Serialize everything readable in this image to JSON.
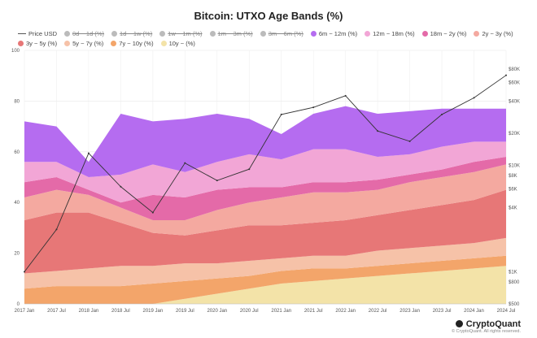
{
  "chart_data": {
    "type": "area",
    "title": "Bitcoin: UTXO Age Bands (%)",
    "stacked": true,
    "x": [
      "2017 Jan",
      "2017 Jul",
      "2018 Jan",
      "2018 Jul",
      "2019 Jan",
      "2019 Jul",
      "2020 Jan",
      "2020 Jul",
      "2021 Jan",
      "2021 Jul",
      "2022 Jan",
      "2022 Jul",
      "2023 Jan",
      "2023 Jul",
      "2024 Jan",
      "2024 Jul"
    ],
    "x_ticks": [
      "2017 Jan",
      "2017 Jul",
      "2018 Jan",
      "2018 Jul",
      "2019 Jan",
      "2019 Jul",
      "2020 Jan",
      "2020 Jul",
      "2021 Jan",
      "2021 Jul",
      "2022 Jan",
      "2022 Jul",
      "2023 Jan",
      "2023 Jul",
      "2024 Jan",
      "2024 Jul"
    ],
    "ylim": [
      0,
      100
    ],
    "y_ticks": [
      0,
      20,
      40,
      60,
      80,
      100
    ],
    "y2_scale": "log",
    "y2lim": [
      500,
      120000
    ],
    "y2_ticks": [
      {
        "label": "$500",
        "value": 500
      },
      {
        "label": "$800",
        "value": 800
      },
      {
        "label": "$1K",
        "value": 1000
      },
      {
        "label": "$4K",
        "value": 4000
      },
      {
        "label": "$6K",
        "value": 6000
      },
      {
        "label": "$8K",
        "value": 8000
      },
      {
        "label": "$10K",
        "value": 10000
      },
      {
        "label": "$20K",
        "value": 20000
      },
      {
        "label": "$40K",
        "value": 40000
      },
      {
        "label": "$60K",
        "value": 60000
      },
      {
        "label": "$80K",
        "value": 80000
      }
    ],
    "grid": true,
    "legend_position": "top-left",
    "legend": [
      {
        "label": "Price USD",
        "color": "#555555",
        "kind": "line",
        "hidden": false
      },
      {
        "label": "0d ~ 1d (%)",
        "color": "#bbbbbb",
        "kind": "dot",
        "hidden": true
      },
      {
        "label": "1d ~ 1w (%)",
        "color": "#bbbbbb",
        "kind": "dot",
        "hidden": true
      },
      {
        "label": "1w ~ 1m (%)",
        "color": "#bbbbbb",
        "kind": "dot",
        "hidden": true
      },
      {
        "label": "1m ~ 3m (%)",
        "color": "#bbbbbb",
        "kind": "dot",
        "hidden": true
      },
      {
        "label": "3m ~ 6m (%)",
        "color": "#bbbbbb",
        "kind": "dot",
        "hidden": true
      },
      {
        "label": "6m ~ 12m (%)",
        "color": "#b56cf0",
        "kind": "dot",
        "hidden": false
      },
      {
        "label": "12m ~ 18m (%)",
        "color": "#f2a6d6",
        "kind": "dot",
        "hidden": false
      },
      {
        "label": "18m ~ 2y (%)",
        "color": "#e46aa8",
        "kind": "dot",
        "hidden": false
      },
      {
        "label": "2y ~ 3y (%)",
        "color": "#f4a9a0",
        "kind": "dot",
        "hidden": false
      },
      {
        "label": "3y ~ 5y (%)",
        "color": "#e77777",
        "kind": "dot",
        "hidden": false
      },
      {
        "label": "5y ~ 7y (%)",
        "color": "#f6c2a8",
        "kind": "dot",
        "hidden": false
      },
      {
        "label": "7y ~ 10y (%)",
        "color": "#f3a56a",
        "kind": "dot",
        "hidden": false
      },
      {
        "label": "10y ~ (%)",
        "color": "#f3e3a8",
        "kind": "dot",
        "hidden": false
      }
    ],
    "series": [
      {
        "name": "10y ~ (%)",
        "color": "#f3e3a8",
        "values": [
          0,
          0,
          0,
          0,
          0,
          2,
          4,
          6,
          8,
          9,
          10,
          11,
          12,
          13,
          14,
          15
        ]
      },
      {
        "name": "7y ~ 10y (%)",
        "color": "#f3a56a",
        "values": [
          6,
          7,
          7,
          7,
          8,
          7,
          6,
          5,
          5,
          5,
          4,
          4,
          4,
          4,
          4,
          4
        ]
      },
      {
        "name": "5y ~ 7y (%)",
        "color": "#f6c2a8",
        "values": [
          6,
          6,
          7,
          8,
          7,
          7,
          6,
          6,
          5,
          5,
          5,
          6,
          6,
          6,
          6,
          7
        ]
      },
      {
        "name": "3y ~ 5y (%)",
        "color": "#e77777",
        "values": [
          21,
          23,
          22,
          17,
          13,
          11,
          13,
          14,
          13,
          13,
          14,
          14,
          15,
          16,
          17,
          19
        ]
      },
      {
        "name": "2y ~ 3y (%)",
        "color": "#f4a9a0",
        "values": [
          9,
          9,
          7,
          6,
          5,
          6,
          8,
          9,
          11,
          12,
          11,
          10,
          11,
          11,
          11,
          10
        ]
      },
      {
        "name": "18m ~ 2y (%)",
        "color": "#e46aa8",
        "values": [
          6,
          5,
          2,
          2,
          10,
          9,
          8,
          6,
          4,
          4,
          4,
          4,
          3,
          3,
          4,
          3
        ]
      },
      {
        "name": "12m ~ 18m (%)",
        "color": "#f2a6d6",
        "values": [
          8,
          6,
          5,
          11,
          12,
          10,
          11,
          13,
          11,
          13,
          13,
          9,
          8,
          9,
          8,
          6
        ]
      },
      {
        "name": "6m ~ 12m (%)",
        "color": "#b56cf0",
        "values": [
          16,
          14,
          6,
          24,
          17,
          21,
          19,
          14,
          10,
          14,
          17,
          17,
          17,
          15,
          13,
          13
        ]
      }
    ],
    "price_usd": [
      1000,
      2500,
      13000,
      6300,
      3600,
      10500,
      7200,
      9200,
      30000,
      35000,
      45000,
      21000,
      16800,
      30000,
      43000,
      70000
    ]
  },
  "footer": {
    "brand": "CryptoQuant",
    "copyright": "© CryptoQuant. All rights reserved."
  }
}
